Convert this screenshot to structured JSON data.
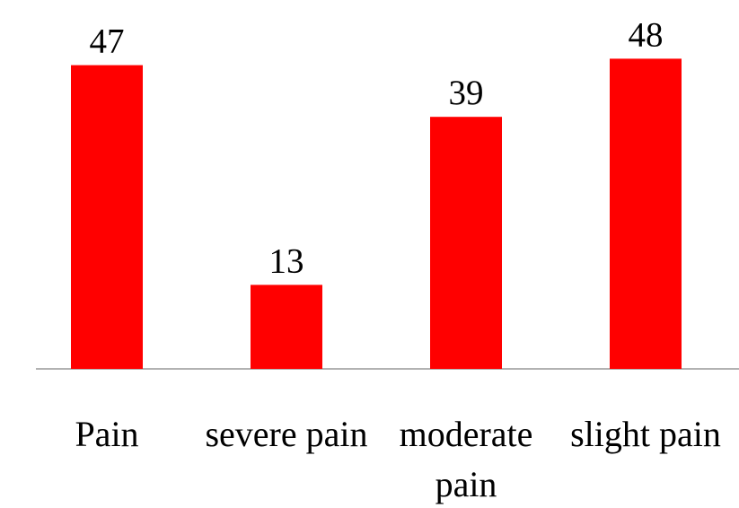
{
  "chart_data": {
    "type": "bar",
    "categories": [
      "Pain",
      "severe pain",
      "moderate pain",
      "slight pain"
    ],
    "values": [
      47,
      13,
      39,
      48
    ],
    "color": "#ff0000"
  }
}
